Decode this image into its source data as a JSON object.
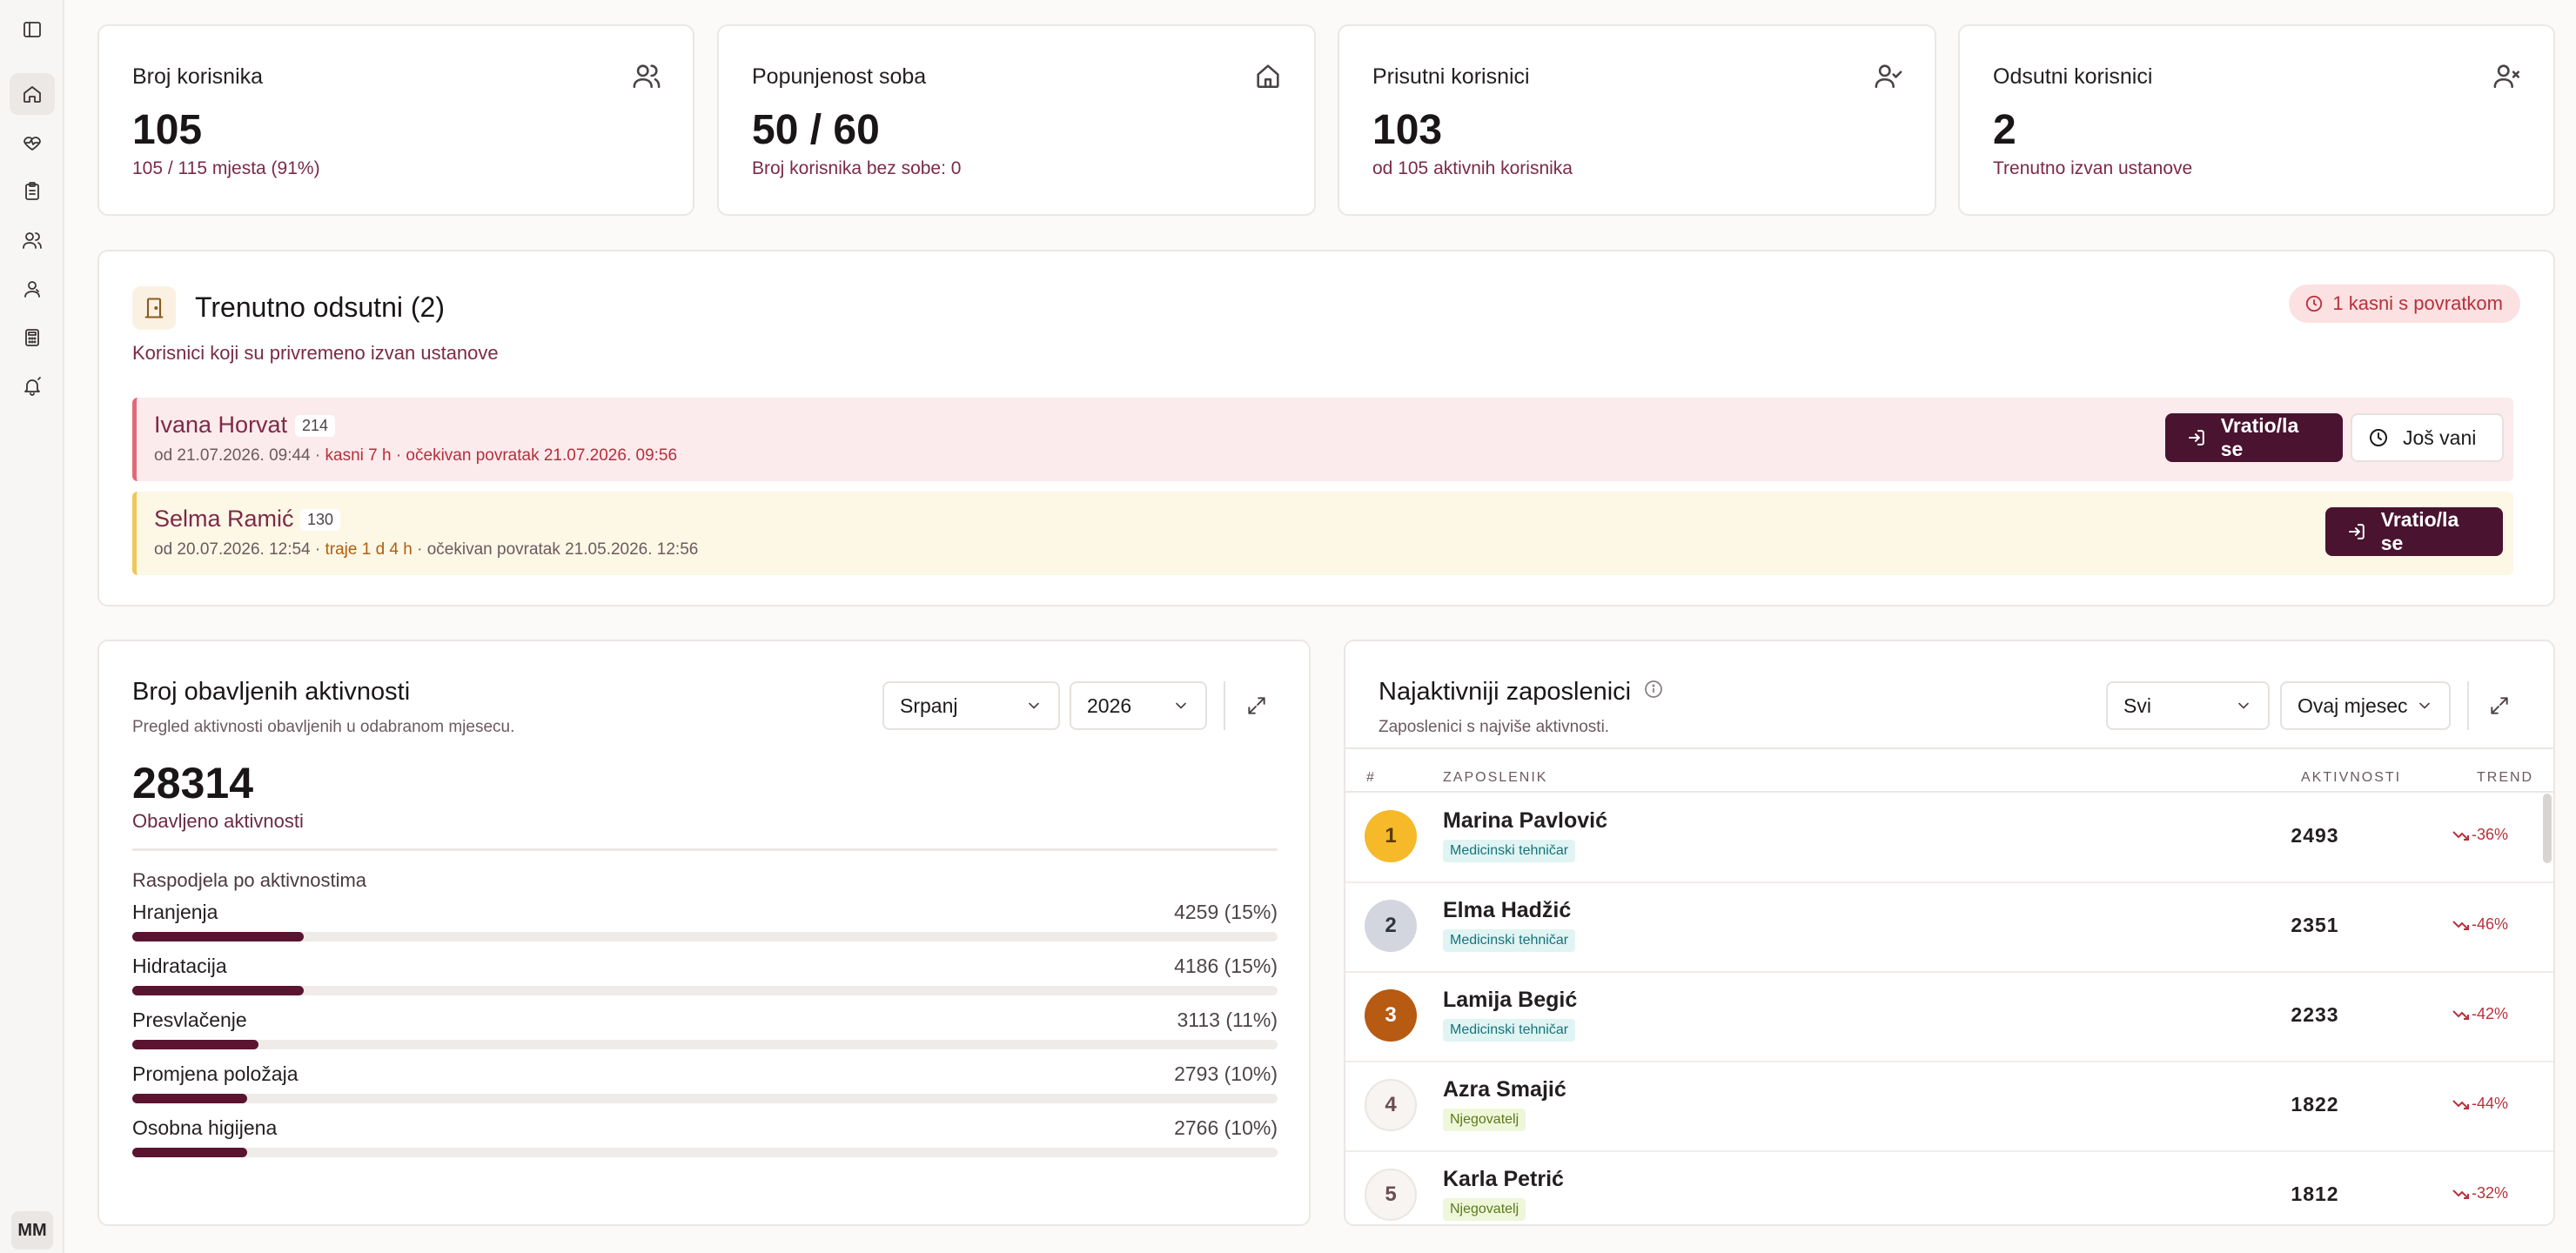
{
  "sidebar": {
    "items": [
      {
        "icon": "panel-toggle-icon"
      },
      {
        "icon": "home-icon",
        "active": true
      },
      {
        "icon": "heart-pulse-icon"
      },
      {
        "icon": "clipboard-icon"
      },
      {
        "icon": "users-icon"
      },
      {
        "icon": "user-group-icon"
      },
      {
        "icon": "calculator-icon"
      },
      {
        "icon": "bell-icon"
      }
    ],
    "avatar": "MM"
  },
  "stats": [
    {
      "title": "Broj korisnika",
      "value": "105",
      "sub": "105 / 115 mjesta (91%)",
      "icon": "users-icon"
    },
    {
      "title": "Popunjenost soba",
      "value": "50 / 60",
      "sub": "Broj korisnika bez sobe: 0",
      "icon": "home-icon"
    },
    {
      "title": "Prisutni korisnici",
      "value": "103",
      "sub": "od 105 aktivnih korisnika",
      "icon": "user-check-icon"
    },
    {
      "title": "Odsutni korisnici",
      "value": "2",
      "sub": "Trenutno izvan ustanove",
      "icon": "user-x-icon"
    }
  ],
  "absent": {
    "title": "Trenutno odsutni (2)",
    "subtitle": "Korisnici koji su privremeno izvan ustanove",
    "late_badge": "1 kasni s povratkom",
    "rows": [
      {
        "name": "Ivana Horvat",
        "room": "214",
        "detail_prefix": "od 21.07.2026. 09:44 · ",
        "detail_highlight": "kasni 7 h · očekivan povratak 21.07.2026. 09:56",
        "detail_suffix": "",
        "status": "late",
        "return_label": "Vratio/la se",
        "still_out_label": "Još vani"
      },
      {
        "name": "Selma Ramić",
        "room": "130",
        "detail_prefix": "od 20.07.2026. 12:54 · ",
        "detail_highlight": "traje 1 d 4 h",
        "detail_suffix": " · očekivan povratak 21.05.2026. 12:56",
        "status": "out",
        "return_label": "Vratio/la se"
      }
    ]
  },
  "activities": {
    "title": "Broj obavljenih aktivnosti",
    "subtitle": "Pregled aktivnosti obavljenih u odabranom mjesecu.",
    "month_select": "Srpanj",
    "year_select": "2026",
    "total": "28314",
    "total_label": "Obavljeno aktivnosti",
    "distribution_title": "Raspodjela po aktivnostima",
    "items": [
      {
        "label": "Hranjenja",
        "value": "4259 (15%)",
        "share": 0.15
      },
      {
        "label": "Hidratacija",
        "value": "4186 (15%)",
        "share": 0.15
      },
      {
        "label": "Presvlačenje",
        "value": "3113 (11%)",
        "share": 0.11
      },
      {
        "label": "Promjena položaja",
        "value": "2793 (10%)",
        "share": 0.1
      },
      {
        "label": "Osobna higijena",
        "value": "2766 (10%)",
        "share": 0.1
      }
    ]
  },
  "employees": {
    "title": "Najaktivniji zaposlenici",
    "subtitle": "Zaposlenici s najviše aktivnosti.",
    "filter_select": "Svi",
    "period_select": "Ovaj mjesec",
    "columns": {
      "rank": "#",
      "employee": "ZAPOSLENIK",
      "activities": "AKTIVNOSTI",
      "trend": "TREND"
    },
    "rows": [
      {
        "rank": "1",
        "name": "Marina Pavlović",
        "role": "Medicinski tehničar",
        "role_type": "med",
        "activities": "2493",
        "trend": "-36%",
        "medal": "gold"
      },
      {
        "rank": "2",
        "name": "Elma Hadžić",
        "role": "Medicinski tehničar",
        "role_type": "med",
        "activities": "2351",
        "trend": "-46%",
        "medal": "silver"
      },
      {
        "rank": "3",
        "name": "Lamija Begić",
        "role": "Medicinski tehničar",
        "role_type": "med",
        "activities": "2233",
        "trend": "-42%",
        "medal": "bronze"
      },
      {
        "rank": "4",
        "name": "Azra Smajić",
        "role": "Njegovatelj",
        "role_type": "care",
        "activities": "1822",
        "trend": "-44%",
        "medal": "none"
      },
      {
        "rank": "5",
        "name": "Karla Petrić",
        "role": "Njegovatelj",
        "role_type": "care",
        "activities": "1812",
        "trend": "-32%",
        "medal": "none"
      }
    ]
  },
  "colors": {
    "accent_dark": "#4a1330",
    "bar_fill": "#5a1430",
    "late_red": "#b8303c",
    "gold": "#f5b92a",
    "silver": "#d3d6de",
    "bronze": "#b75a12"
  }
}
